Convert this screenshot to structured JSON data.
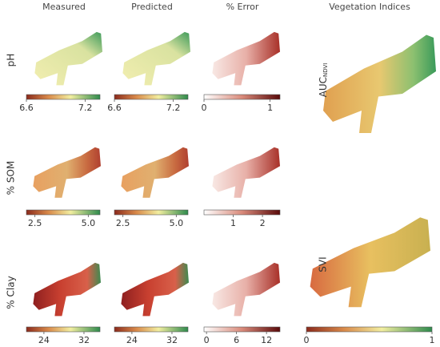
{
  "columns": [
    "Measured",
    "Predicted",
    "% Error",
    "Vegetation Indices"
  ],
  "rows": [
    {
      "label": "pH",
      "colorbars": [
        {
          "lim": [
            6.6,
            7.35
          ],
          "ticks": [
            6.6,
            7.2
          ]
        },
        {
          "lim": [
            6.6,
            7.35
          ],
          "ticks": [
            6.6,
            7.2
          ]
        },
        {
          "lim": [
            0,
            1.15
          ],
          "ticks": [
            0,
            1
          ]
        }
      ]
    },
    {
      "label": "% SOM",
      "colorbars": [
        {
          "lim": [
            2.1,
            5.55
          ],
          "ticks": [
            2.5,
            {
              "value": 5,
              "label": "5.0"
            }
          ]
        },
        {
          "lim": [
            2.1,
            5.55
          ],
          "ticks": [
            2.5,
            {
              "value": 5,
              "label": "5.0"
            }
          ]
        },
        {
          "lim": [
            0,
            2.6
          ],
          "ticks": [
            1,
            2
          ]
        }
      ]
    },
    {
      "label": "% Clay",
      "colorbars": [
        {
          "lim": [
            20.5,
            35.2
          ],
          "ticks": [
            24,
            32
          ]
        },
        {
          "lim": [
            20.5,
            35.2
          ],
          "ticks": [
            24,
            32
          ]
        },
        {
          "lim": [
            -0.5,
            14.7
          ],
          "ticks": [
            0,
            6,
            12
          ]
        }
      ]
    }
  ],
  "vegetation": [
    {
      "label": "AUC",
      "subscript": "NDVI"
    },
    {
      "label": "SVI"
    }
  ],
  "vegetation_colorbar": {
    "lim": [
      0,
      1
    ],
    "ticks": [
      0,
      1
    ]
  }
}
